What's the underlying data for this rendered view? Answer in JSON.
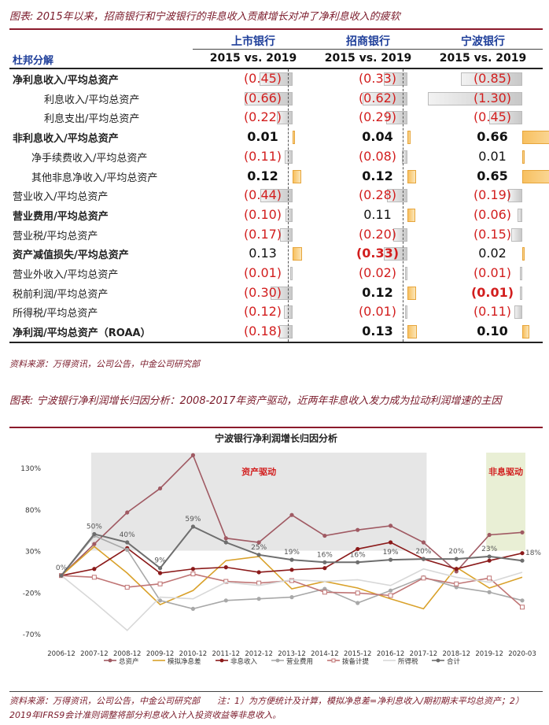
{
  "table_caption": "图表: 2015年以来，招商银行和宁波银行的非息收入贡献增长对冲了净利息收入的疲软",
  "columns": [
    {
      "name": "上市银行",
      "period": "2015 vs. 2019"
    },
    {
      "name": "招商银行",
      "period": "2015 vs. 2019"
    },
    {
      "name": "宁波银行",
      "period": "2015 vs. 2019"
    }
  ],
  "dupont_label": "杜邦分解",
  "rows": [
    {
      "label": "净利息收入/平均总资产",
      "indent": 0,
      "bold": true,
      "cells": [
        {
          "text": "(0.45)",
          "value": -0.45,
          "color": "red",
          "bold": false
        },
        {
          "text": "(0.33)",
          "value": -0.33,
          "color": "red",
          "bold": false
        },
        {
          "text": "(0.85)",
          "value": -0.85,
          "color": "red",
          "bold": false
        }
      ]
    },
    {
      "label": "利息收入/平均总资产",
      "indent": 2,
      "bold": false,
      "cells": [
        {
          "text": "(0.66)",
          "value": -0.66,
          "color": "red",
          "bold": false
        },
        {
          "text": "(0.62)",
          "value": -0.62,
          "color": "red",
          "bold": false
        },
        {
          "text": "(1.30)",
          "value": -1.3,
          "color": "red",
          "bold": false
        }
      ]
    },
    {
      "label": "利息支出/平均总资产",
      "indent": 2,
      "bold": false,
      "cells": [
        {
          "text": "(0.22)",
          "value": -0.22,
          "color": "red",
          "bold": false
        },
        {
          "text": "(0.29)",
          "value": -0.29,
          "color": "red",
          "bold": false
        },
        {
          "text": "(0.45)",
          "value": -0.45,
          "color": "red",
          "bold": false
        }
      ]
    },
    {
      "label": "非利息收入/平均总资产",
      "indent": 0,
      "bold": true,
      "cells": [
        {
          "text": "0.01",
          "value": 0.01,
          "color": "black",
          "bold": true
        },
        {
          "text": "0.04",
          "value": 0.04,
          "color": "black",
          "bold": true
        },
        {
          "text": "0.66",
          "value": 0.66,
          "color": "black",
          "bold": true
        }
      ]
    },
    {
      "label": "净手续费收入/平均总资产",
      "indent": 1,
      "bold": false,
      "cells": [
        {
          "text": "(0.11)",
          "value": -0.11,
          "color": "red",
          "bold": false
        },
        {
          "text": "(0.08)",
          "value": -0.08,
          "color": "red",
          "bold": false
        },
        {
          "text": "0.01",
          "value": 0.01,
          "color": "black",
          "bold": false
        }
      ]
    },
    {
      "label": "其他非息净收入/平均总资产",
      "indent": 1,
      "bold": false,
      "cells": [
        {
          "text": "0.12",
          "value": 0.12,
          "color": "black",
          "bold": true
        },
        {
          "text": "0.12",
          "value": 0.12,
          "color": "black",
          "bold": true
        },
        {
          "text": "0.65",
          "value": 0.65,
          "color": "black",
          "bold": true
        }
      ]
    },
    {
      "label": "营业收入/平均总资产",
      "indent": 0,
      "bold": false,
      "cells": [
        {
          "text": "(0.44)",
          "value": -0.44,
          "color": "red",
          "bold": false
        },
        {
          "text": "(0.28)",
          "value": -0.28,
          "color": "red",
          "bold": false
        },
        {
          "text": "(0.19)",
          "value": -0.19,
          "color": "red",
          "bold": false
        }
      ]
    },
    {
      "label": "营业费用/平均总资产",
      "indent": 0,
      "bold": true,
      "cells": [
        {
          "text": "(0.10)",
          "value": -0.1,
          "color": "red",
          "bold": false
        },
        {
          "text": "0.11",
          "value": 0.11,
          "color": "black",
          "bold": false
        },
        {
          "text": "(0.06)",
          "value": -0.06,
          "color": "red",
          "bold": false
        }
      ]
    },
    {
      "label": "营业税/平均总资产",
      "indent": 0,
      "bold": false,
      "cells": [
        {
          "text": "(0.17)",
          "value": -0.17,
          "color": "red",
          "bold": false
        },
        {
          "text": "(0.20)",
          "value": -0.2,
          "color": "red",
          "bold": false
        },
        {
          "text": "(0.15)",
          "value": -0.15,
          "color": "red",
          "bold": false
        }
      ]
    },
    {
      "label": "资产减值损失/平均总资产",
      "indent": 0,
      "bold": true,
      "cells": [
        {
          "text": "0.13",
          "value": 0.13,
          "color": "black",
          "bold": false
        },
        {
          "text": "(0.33)",
          "value": -0.33,
          "color": "red",
          "bold": true
        },
        {
          "text": "0.02",
          "value": 0.02,
          "color": "black",
          "bold": false
        }
      ]
    },
    {
      "label": "营业外收入/平均总资产",
      "indent": 0,
      "bold": false,
      "cells": [
        {
          "text": "(0.01)",
          "value": -0.01,
          "color": "red",
          "bold": false
        },
        {
          "text": "(0.02)",
          "value": -0.02,
          "color": "red",
          "bold": false
        },
        {
          "text": "(0.01)",
          "value": -0.01,
          "color": "red",
          "bold": false
        }
      ]
    },
    {
      "label": "税前利润/平均总资产",
      "indent": 0,
      "bold": false,
      "cells": [
        {
          "text": "(0.30)",
          "value": -0.3,
          "color": "red",
          "bold": false
        },
        {
          "text": "0.12",
          "value": 0.12,
          "color": "black",
          "bold": true
        },
        {
          "text": "(0.01)",
          "value": -0.01,
          "color": "red",
          "bold": true
        }
      ]
    },
    {
      "label": "所得税/平均总资产",
      "indent": 0,
      "bold": false,
      "cells": [
        {
          "text": "(0.12)",
          "value": -0.12,
          "color": "red",
          "bold": false
        },
        {
          "text": "(0.01)",
          "value": -0.01,
          "color": "red",
          "bold": false
        },
        {
          "text": "(0.11)",
          "value": -0.11,
          "color": "red",
          "bold": false
        }
      ]
    },
    {
      "label": "净利润/平均总资产（ROAA）",
      "indent": 0,
      "bold": true,
      "cells": [
        {
          "text": "(0.18)",
          "value": -0.18,
          "color": "red",
          "bold": false
        },
        {
          "text": "0.13",
          "value": 0.13,
          "color": "black",
          "bold": true
        },
        {
          "text": "0.10",
          "value": 0.1,
          "color": "black",
          "bold": true
        }
      ]
    }
  ],
  "table_source": "资料来源：万得资讯，公司公告，中金公司研究部",
  "chart_caption": "图表: 宁波银行净利润增长归因分析：2008-2017年资产驱动，近两年非息收入发力成为拉动利润增速的主因",
  "chart_source": "资料来源：万得资讯，公司公告，中金公司研究部　　注：1）为方便统计及计算，模拟净息差=净利息收入/期初期末平均总资产；2）2019年IFRS9会计准则调整将部分利息收入计入投资收益等非息收入。",
  "colors": {
    "caption": "#7a1a2a",
    "header_blue": "#1f3f9a",
    "neg_red": "#d21e1e",
    "bar_gold": "#f8c060"
  },
  "chart_data": {
    "type": "line",
    "title": "宁波银行净利润增长归因分析",
    "categories": [
      "2006-12",
      "2007-12",
      "2008-12",
      "2009-12",
      "2010-12",
      "2011-12",
      "2012-12",
      "2013-12",
      "2014-12",
      "2015-12",
      "2016-12",
      "2017-12",
      "2018-12",
      "2019-12",
      "2020-03"
    ],
    "yticks": [
      -70,
      -20,
      30,
      80,
      130
    ],
    "ytick_labels": [
      "-70%",
      "-20%",
      "30%",
      "80%",
      "130%"
    ],
    "ylim": [
      -70,
      150
    ],
    "shaded_regions": [
      {
        "label": "资产驱动",
        "from": "2007-12",
        "to": "2017-12",
        "color": "#e6e6e6"
      },
      {
        "label": "非息驱动",
        "from": "2019-12",
        "to": "2020-03",
        "color": "#e9efd5"
      }
    ],
    "series": [
      {
        "name": "总资产",
        "color": "#a05a63",
        "marker": "circle",
        "values": [
          0,
          38,
          76,
          105,
          145,
          45,
          40,
          73,
          48,
          55,
          60,
          40,
          5,
          49,
          52
        ]
      },
      {
        "name": "模拟净息差",
        "color": "#d9a12a",
        "marker": "none",
        "values": [
          0,
          35,
          3,
          -35,
          -18,
          18,
          23,
          -16,
          -7,
          -15,
          -28,
          -40,
          10,
          -15,
          -2
        ]
      },
      {
        "name": "非息收入",
        "color": "#8b1a1a",
        "marker": "circle",
        "values": [
          0,
          8,
          33,
          3,
          8,
          10,
          4,
          7,
          9,
          32,
          40,
          20,
          8,
          18,
          27
        ]
      },
      {
        "name": "营业费用",
        "color": "#a8a8a8",
        "marker": "circle",
        "values": [
          0,
          48,
          31,
          -30,
          -40,
          -30,
          -28,
          -26,
          -16,
          -33,
          -18,
          -2,
          -14,
          -20,
          -30
        ]
      },
      {
        "name": "拨备计提",
        "color": "#c07575",
        "marker": "square",
        "values": [
          0,
          -2,
          -14,
          -10,
          2,
          -7,
          -9,
          -6,
          -20,
          -21,
          -24,
          -3,
          -10,
          -3,
          -38
        ]
      },
      {
        "name": "所得税",
        "color": "#d8d8d8",
        "marker": "none",
        "values": [
          0,
          -32,
          -66,
          -26,
          -28,
          -8,
          -12,
          -5,
          -7,
          -5,
          -12,
          8,
          -2,
          -8,
          4
        ]
      },
      {
        "name": "合计",
        "color": "#6e6e6e",
        "marker": "circle",
        "values": [
          0,
          50,
          40,
          9,
          59,
          40,
          25,
          19,
          16,
          16,
          19,
          20,
          20,
          23,
          18
        ]
      }
    ],
    "data_labels": {
      "series": "合计",
      "values": [
        "0%",
        "50%",
        "40%",
        "9%",
        "59%",
        "",
        "25%",
        "19%",
        "16%",
        "16%",
        "19%",
        "20%",
        "20%",
        "23%",
        "18%"
      ]
    }
  }
}
